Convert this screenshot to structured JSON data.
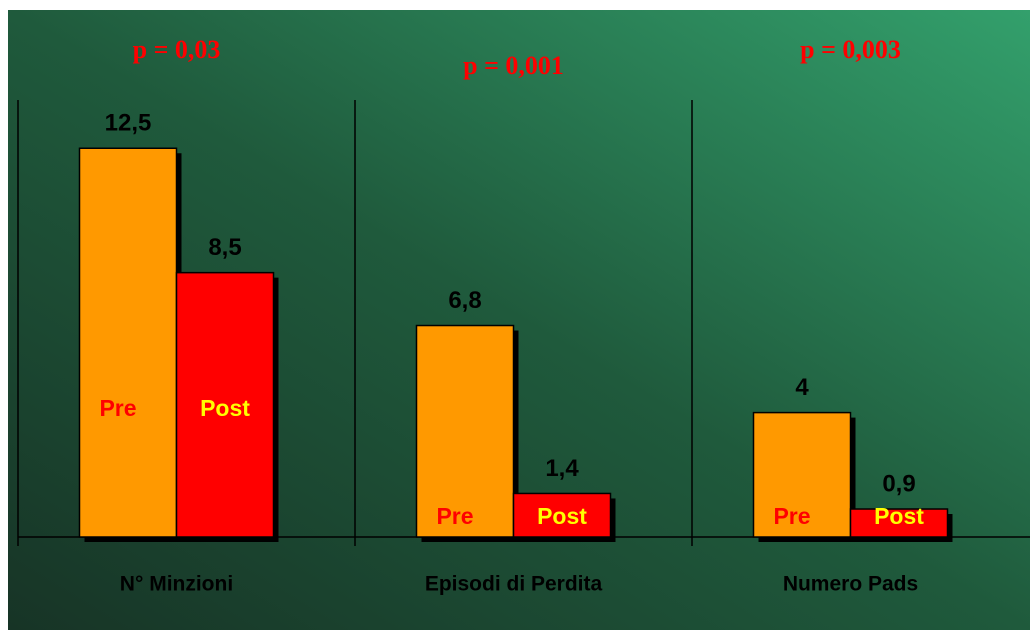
{
  "chart_data": {
    "type": "bar",
    "categories": [
      "N° Minzioni",
      "Episodi di Perdita",
      "Numero Pads"
    ],
    "series": [
      {
        "name": "Pre",
        "color": "#ff9900",
        "text_color": "#ff0000",
        "values": [
          12.5,
          6.8,
          4
        ],
        "value_labels": [
          "12,5",
          "6,8",
          "4"
        ]
      },
      {
        "name": "Post",
        "color": "#ff0000",
        "text_color": "#ffff00",
        "values": [
          8.5,
          1.4,
          0.9
        ],
        "value_labels": [
          "8,5",
          "1,4",
          "0,9"
        ]
      }
    ],
    "annotations": [
      "p = 0,03",
      "p = 0,001",
      "p = 0,003"
    ]
  }
}
